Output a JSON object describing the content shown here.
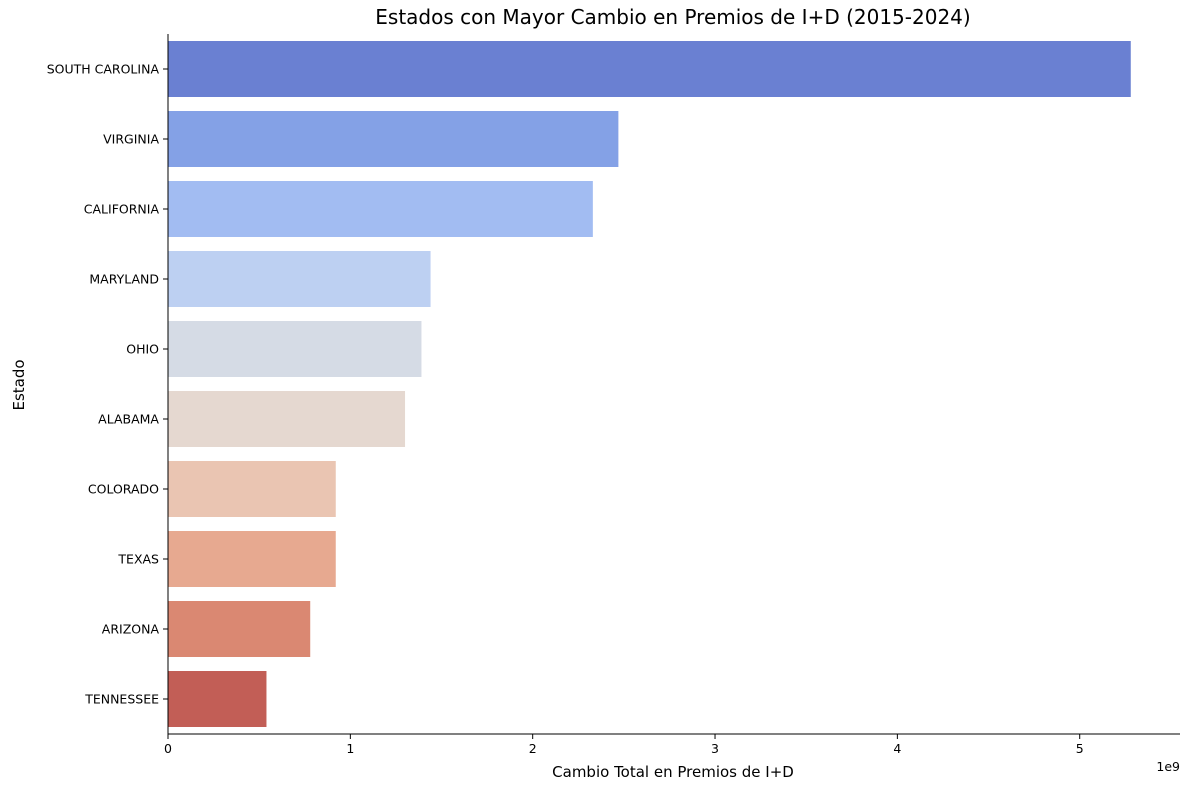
{
  "chart_data": {
    "type": "bar",
    "orientation": "horizontal",
    "title": "Estados con Mayor Cambio en Premios de I+D (2015-2024)",
    "xlabel": "Cambio Total en Premios de I+D",
    "ylabel": "Estado",
    "x_offset_label": "1e9",
    "xlim": [
      0,
      5.55
    ],
    "x_ticks": [
      0,
      1,
      2,
      3,
      4,
      5
    ],
    "x_tick_labels": [
      "0",
      "1",
      "2",
      "3",
      "4",
      "5"
    ],
    "grid": false,
    "legend": "none",
    "categories": [
      "SOUTH CAROLINA",
      "VIRGINIA",
      "CALIFORNIA",
      "MARYLAND",
      "OHIO",
      "ALABAMA",
      "COLORADO",
      "TEXAS",
      "ARIZONA",
      "TENNESSEE"
    ],
    "values": [
      5.28,
      2.47,
      2.33,
      1.44,
      1.39,
      1.3,
      0.92,
      0.92,
      0.78,
      0.54
    ],
    "colors": [
      "#6a80d2",
      "#84a1e6",
      "#a2bcf2",
      "#bdd0f2",
      "#d5dbe5",
      "#e5d8d0",
      "#eac5b2",
      "#e7a990",
      "#da8872",
      "#c25e56"
    ]
  }
}
